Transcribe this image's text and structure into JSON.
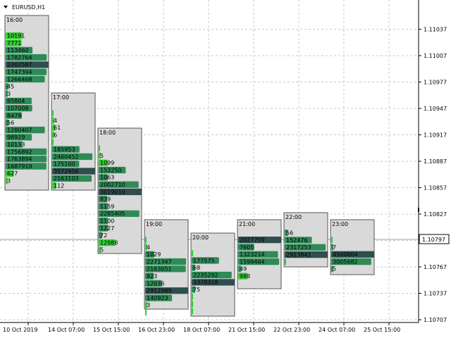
{
  "symbol_title": "EURUSD,H1",
  "colors": {
    "background": "#ffffff",
    "grid": "#c8c8c8",
    "box_fill": "#d9d9d9",
    "box_border": "#555555",
    "bar_dark": "#2f4f4f",
    "bar_mid": "#2e8b57",
    "bar_light": "#32cd32",
    "current_price_line": "#a0a0a0"
  },
  "chart_data": {
    "type": "table",
    "price_axis_labels": [
      "1.11037",
      "1.11007",
      "1.10977",
      "1.10947",
      "1.10917",
      "1.10887",
      "1.10857",
      "1.10827",
      "1.10797",
      "1.10767",
      "1.10737",
      "1.10707"
    ],
    "current_price": "1.10797",
    "time_axis_labels": [
      "10 Oct 2019",
      "14 Oct 07:00",
      "15 Oct 15:00",
      "16 Oct 23:00",
      "18 Oct 07:00",
      "21 Oct 15:00",
      "22 Oct 23:00",
      "24 Oct 07:00",
      "25 Oct 15:00"
    ],
    "profiles": [
      {
        "time": "16:00",
        "rows": [
          {
            "v": "10191",
            "c": "light"
          },
          {
            "v": "7771",
            "c": "light"
          },
          {
            "v": "113460",
            "c": "mid"
          },
          {
            "v": "1782764",
            "c": "mid"
          },
          {
            "v": "2202587",
            "c": "dark"
          },
          {
            "v": "1747394",
            "c": "mid"
          },
          {
            "v": "1266468",
            "c": "mid"
          },
          {
            "v": "45",
            "c": "mid"
          },
          {
            "v": "3",
            "c": "mid"
          },
          {
            "v": "95804",
            "c": "mid"
          },
          {
            "v": "107008",
            "c": "mid"
          },
          {
            "v": "8479",
            "c": "mid"
          },
          {
            "v": "56",
            "c": "mid"
          },
          {
            "v": "1280407",
            "c": "mid"
          },
          {
            "v": "98929",
            "c": "mid"
          },
          {
            "v": "10133",
            "c": "mid"
          },
          {
            "v": "1756892",
            "c": "mid"
          },
          {
            "v": "1763894",
            "c": "mid"
          },
          {
            "v": "1687919",
            "c": "mid"
          },
          {
            "v": "627",
            "c": "light"
          },
          {
            "v": "3",
            "c": "light"
          }
        ]
      },
      {
        "time": "17:00",
        "rows": [
          {
            "v": "",
            "c": "light"
          },
          {
            "v": "4",
            "c": "light"
          },
          {
            "v": "61",
            "c": "light"
          },
          {
            "v": "6",
            "c": "light"
          },
          {
            "v": "",
            "c": "light"
          },
          {
            "v": "185953",
            "c": "mid"
          },
          {
            "v": "2460452",
            "c": "mid"
          },
          {
            "v": "175100",
            "c": "mid"
          },
          {
            "v": "3572956",
            "c": "dark"
          },
          {
            "v": "2163103",
            "c": "mid"
          },
          {
            "v": "112",
            "c": "light"
          }
        ]
      },
      {
        "time": "18:00",
        "rows": [
          {
            "v": "",
            "c": "light"
          },
          {
            "v": "5",
            "c": "light"
          },
          {
            "v": "1099",
            "c": "light"
          },
          {
            "v": "153250",
            "c": "mid"
          },
          {
            "v": "1063",
            "c": "mid"
          },
          {
            "v": "2002710",
            "c": "mid"
          },
          {
            "v": "3019010",
            "c": "dark"
          },
          {
            "v": "839",
            "c": "mid"
          },
          {
            "v": "1159",
            "c": "mid"
          },
          {
            "v": "2285405",
            "c": "mid"
          },
          {
            "v": "1100",
            "c": "mid"
          },
          {
            "v": "1227",
            "c": "mid"
          },
          {
            "v": "72",
            "c": "mid"
          },
          {
            "v": "12988",
            "c": "light"
          },
          {
            "v": "5",
            "c": "light"
          }
        ]
      },
      {
        "time": "19:00",
        "rows": [
          {
            "v": "",
            "c": "light"
          },
          {
            "v": "4",
            "c": "light"
          },
          {
            "v": "1029",
            "c": "mid"
          },
          {
            "v": "2271347",
            "c": "mid"
          },
          {
            "v": "2163051",
            "c": "mid"
          },
          {
            "v": "823",
            "c": "mid"
          },
          {
            "v": "12036",
            "c": "mid"
          },
          {
            "v": "2912989",
            "c": "dark"
          },
          {
            "v": "140923",
            "c": "mid"
          },
          {
            "v": "3",
            "c": "light"
          },
          {
            "v": "",
            "c": "light"
          }
        ]
      },
      {
        "time": "20:00",
        "rows": [
          {
            "v": "",
            "c": "light"
          },
          {
            "v": "177575",
            "c": "mid"
          },
          {
            "v": "68",
            "c": "mid"
          },
          {
            "v": "2235292",
            "c": "mid"
          },
          {
            "v": "3378318",
            "c": "dark"
          },
          {
            "v": "75",
            "c": "mid"
          },
          {
            "v": "",
            "c": "light"
          },
          {
            "v": "",
            "c": "light"
          },
          {
            "v": "",
            "c": "light"
          }
        ]
      },
      {
        "time": "21:00",
        "rows": [
          {
            "v": "2027759",
            "c": "dark"
          },
          {
            "v": "7605",
            "c": "mid"
          },
          {
            "v": "1323214",
            "c": "mid"
          },
          {
            "v": "1599464",
            "c": "mid"
          },
          {
            "v": "49",
            "c": "mid"
          },
          {
            "v": "988",
            "c": "light"
          }
        ]
      },
      {
        "time": "22:00",
        "rows": [
          {
            "v": "56",
            "c": "mid"
          },
          {
            "v": "152476",
            "c": "mid"
          },
          {
            "v": "2317253",
            "c": "mid"
          },
          {
            "v": "2913841",
            "c": "dark"
          },
          {
            "v": "",
            "c": "light"
          }
        ]
      },
      {
        "time": "23:00",
        "rows": [
          {
            "v": "",
            "c": "light"
          },
          {
            "v": "7",
            "c": "mid"
          },
          {
            "v": "4500804",
            "c": "dark"
          },
          {
            "v": "3005682",
            "c": "mid"
          },
          {
            "v": "5",
            "c": "mid"
          }
        ]
      }
    ]
  }
}
